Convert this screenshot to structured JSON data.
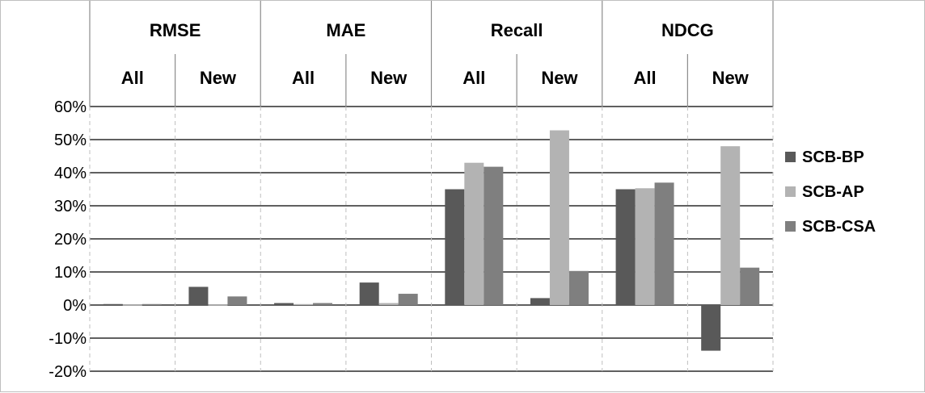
{
  "chart_data": {
    "type": "bar",
    "metrics": [
      "RMSE",
      "MAE",
      "Recall",
      "NDCG"
    ],
    "subsets": [
      "All",
      "New"
    ],
    "categories": [
      "RMSE All",
      "RMSE New",
      "MAE All",
      "MAE New",
      "Recall All",
      "Recall New",
      "NDCG All",
      "NDCG New"
    ],
    "series": [
      {
        "name": "SCB-BP",
        "color": "#595959",
        "values": [
          0.3,
          5.5,
          0.6,
          6.8,
          35.0,
          2.1,
          35.0,
          -13.8
        ]
      },
      {
        "name": "SCB-AP",
        "color": "#b3b3b3",
        "values": [
          0.1,
          0.1,
          0.3,
          0.6,
          43.0,
          52.8,
          35.3,
          48.0
        ]
      },
      {
        "name": "SCB-CSA",
        "color": "#7f7f7f",
        "values": [
          0.3,
          2.6,
          0.6,
          3.4,
          41.8,
          10.3,
          37.0,
          11.3
        ]
      }
    ],
    "ylim": [
      -20,
      60
    ],
    "yticks": [
      "60%",
      "50%",
      "40%",
      "30%",
      "20%",
      "10%",
      "0%",
      "-10%",
      "-20%"
    ],
    "ytick_values": [
      60,
      50,
      40,
      30,
      20,
      10,
      0,
      -10,
      -20
    ],
    "grid": true,
    "legend_position": "right"
  }
}
